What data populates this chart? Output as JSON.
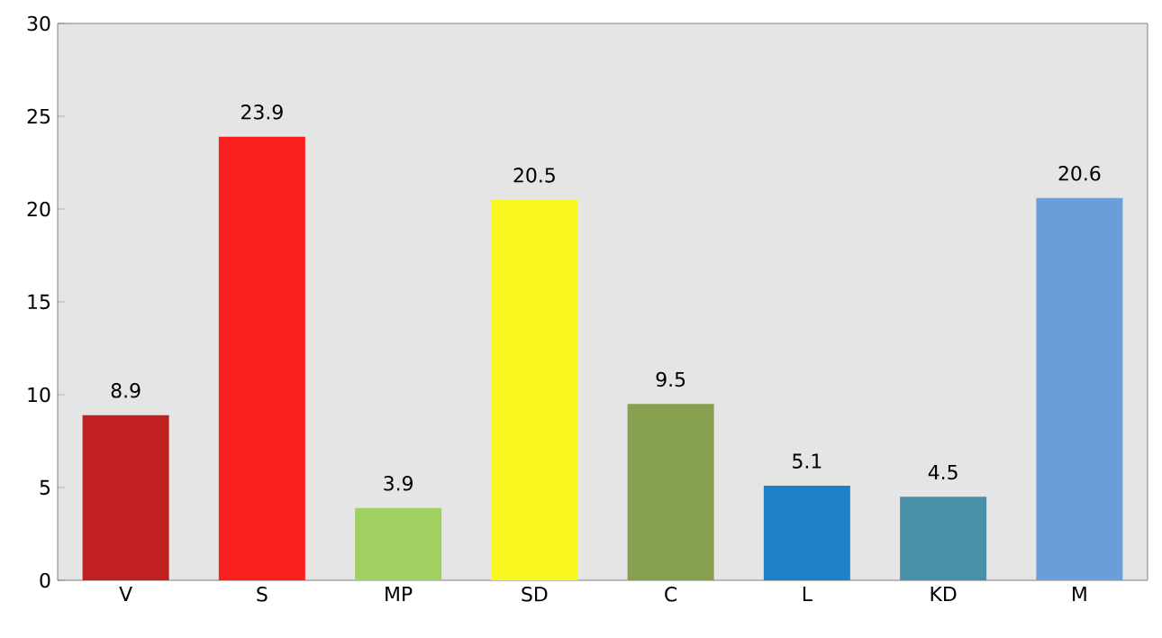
{
  "chart_data": {
    "type": "bar",
    "categories": [
      "V",
      "S",
      "MP",
      "SD",
      "C",
      "L",
      "KD",
      "M"
    ],
    "values": [
      8.9,
      23.9,
      3.9,
      20.5,
      9.5,
      5.1,
      4.5,
      20.6
    ],
    "colors": [
      "#c02020",
      "#fa2020",
      "#a0d060",
      "#f8f820",
      "#86a050",
      "#2080c8",
      "#4890a8",
      "#6a9ed8"
    ],
    "ylim": [
      0,
      30
    ],
    "yticks": [
      0,
      5,
      10,
      15,
      20,
      25,
      30
    ],
    "data_labels": true
  }
}
